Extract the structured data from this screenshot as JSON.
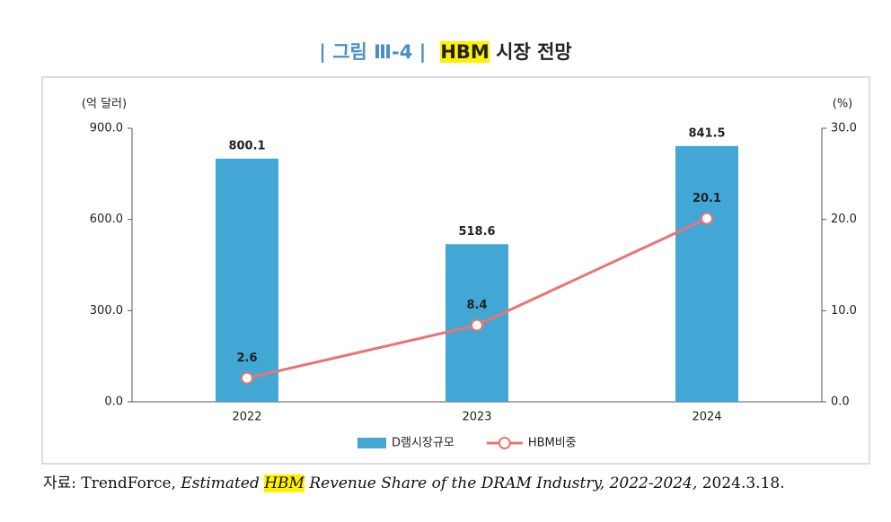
{
  "figure_label": "| 그림 Ⅲ-4 |",
  "title_highlight": "HBM",
  "title_rest": "시장 전망",
  "source": {
    "prefix": "자료: TrendForce,",
    "italic_before": "Estimated",
    "highlight": "HBM",
    "italic_after": "Revenue Share of the DRAM Industry, 2022-2024,",
    "date": "2024.3.18."
  },
  "chart_data": {
    "type": "bar",
    "y_label": "(억 달러)",
    "y2_label": "(%)",
    "categories": [
      "2022",
      "2023",
      "2024"
    ],
    "series": [
      {
        "name": "D램시장규모",
        "type": "bar",
        "color": "#43a7d5",
        "values": [
          800.1,
          518.6,
          841.5
        ]
      },
      {
        "name": "HBM비중",
        "type": "line",
        "axis": "y2",
        "color": "#e97473",
        "values": [
          2.6,
          8.4,
          20.1
        ]
      }
    ],
    "ylim": [
      0,
      900
    ],
    "yticks": [
      {
        "value": 0,
        "label": "0.0"
      },
      {
        "value": 300,
        "label": "300.0"
      },
      {
        "value": 600,
        "label": "600.0"
      },
      {
        "value": 900,
        "label": "900.0"
      }
    ],
    "y2lim": [
      0,
      30
    ],
    "y2ticks": [
      {
        "value": 0,
        "label": "0.0"
      },
      {
        "value": 10,
        "label": "10.0"
      },
      {
        "value": 20,
        "label": "20.0"
      },
      {
        "value": 30,
        "label": "30.0"
      }
    ],
    "grid": false,
    "legend": "bottom"
  }
}
